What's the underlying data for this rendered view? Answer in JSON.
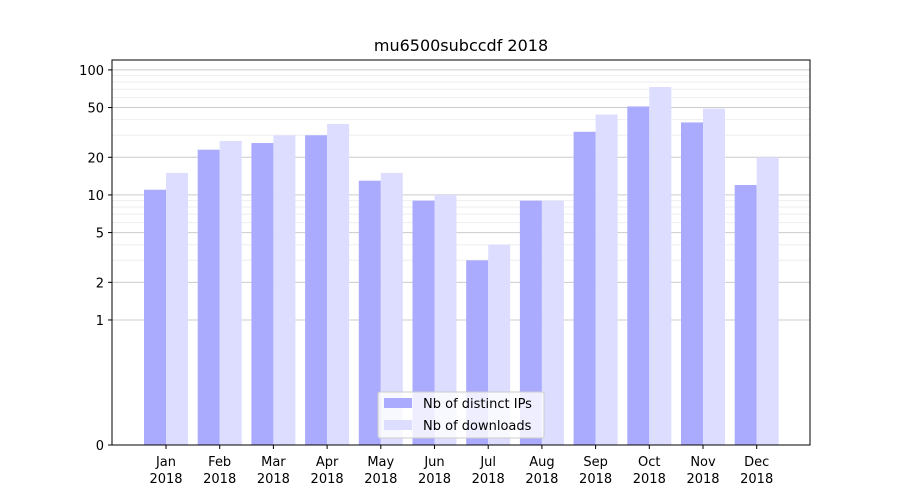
{
  "chart_data": {
    "type": "bar",
    "title": "mu6500subccdf 2018",
    "xlabel": "",
    "ylabel": "",
    "y_scale": "symlog",
    "ylim": [
      0,
      120
    ],
    "yticks": [
      0,
      1,
      2,
      5,
      10,
      20,
      50,
      100
    ],
    "grid": true,
    "legend_position": "bottom-center",
    "categories": [
      [
        "Jan",
        "2018"
      ],
      [
        "Feb",
        "2018"
      ],
      [
        "Mar",
        "2018"
      ],
      [
        "Apr",
        "2018"
      ],
      [
        "May",
        "2018"
      ],
      [
        "Jun",
        "2018"
      ],
      [
        "Jul",
        "2018"
      ],
      [
        "Aug",
        "2018"
      ],
      [
        "Sep",
        "2018"
      ],
      [
        "Oct",
        "2018"
      ],
      [
        "Nov",
        "2018"
      ],
      [
        "Dec",
        "2018"
      ]
    ],
    "series": [
      {
        "name": "Nb of distinct IPs",
        "color": "#aaaaff",
        "values": [
          11,
          23,
          26,
          30,
          13,
          9,
          3,
          9,
          32,
          51,
          38,
          12
        ]
      },
      {
        "name": "Nb of downloads",
        "color": "#ddddff",
        "values": [
          15,
          27,
          30,
          37,
          15,
          10,
          4,
          9,
          44,
          73,
          49,
          20
        ]
      }
    ]
  }
}
